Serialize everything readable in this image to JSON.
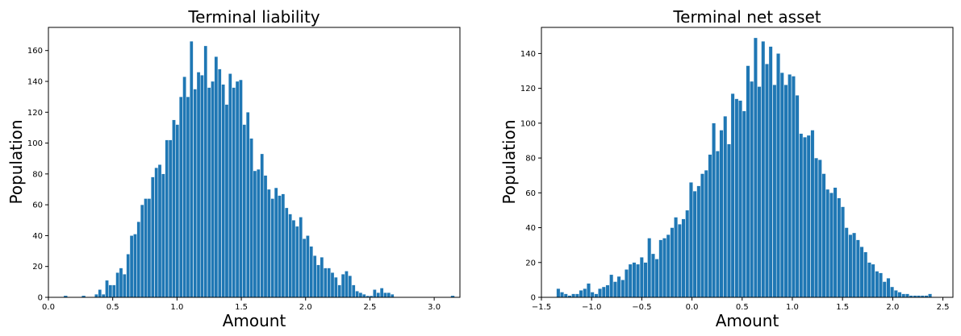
{
  "chart_data": [
    {
      "type": "bar",
      "title": "Terminal liability",
      "xlabel": "Amount",
      "ylabel": "Population",
      "xlim": [
        0.0,
        3.2
      ],
      "ylim": [
        0,
        175
      ],
      "x_ticks": [
        0.0,
        0.5,
        1.0,
        1.5,
        2.0,
        2.5,
        3.0
      ],
      "x_tick_labels": [
        "0.0",
        "0.5",
        "1.0",
        "1.5",
        "2.0",
        "2.5",
        "3.0"
      ],
      "y_ticks": [
        0,
        20,
        40,
        60,
        80,
        100,
        120,
        140,
        160
      ],
      "y_tick_labels": [
        "0",
        "20",
        "40",
        "60",
        "80",
        "100",
        "120",
        "140",
        "160"
      ],
      "bin_start": 0.36,
      "bin_width": 0.0274,
      "values": [
        2,
        5,
        2,
        11,
        8,
        8,
        16,
        19,
        15,
        28,
        40,
        41,
        49,
        60,
        64,
        64,
        78,
        84,
        86,
        80,
        102,
        102,
        115,
        112,
        130,
        143,
        130,
        166,
        135,
        146,
        144,
        163,
        136,
        140,
        156,
        148,
        138,
        125,
        145,
        136,
        140,
        141,
        112,
        120,
        103,
        82,
        83,
        93,
        79,
        70,
        64,
        71,
        66,
        67,
        58,
        54,
        50,
        46,
        52,
        38,
        40,
        33,
        27,
        21,
        26,
        19,
        19,
        16,
        13,
        8,
        15,
        17,
        14,
        8,
        4,
        3,
        2,
        1,
        1,
        5,
        3,
        6,
        3,
        3,
        2
      ],
      "extra_bars": [
        {
          "x": 0.12,
          "y": 1
        },
        {
          "x": 0.26,
          "y": 1
        },
        {
          "x": 3.13,
          "y": 1
        }
      ],
      "bar_color": "#1f77b4"
    },
    {
      "type": "bar",
      "title": "Terminal net asset",
      "xlabel": "Amount",
      "ylabel": "Population",
      "xlim": [
        -1.5,
        2.6
      ],
      "ylim": [
        0,
        155
      ],
      "x_ticks": [
        -1.5,
        -1.0,
        -0.5,
        0.0,
        0.5,
        1.0,
        1.5,
        2.0,
        2.5
      ],
      "x_tick_labels": [
        "−1.5",
        "−1.0",
        "−0.5",
        "0.0",
        "0.5",
        "1.0",
        "1.5",
        "2.0",
        "2.5"
      ],
      "y_ticks": [
        0,
        20,
        40,
        60,
        80,
        100,
        120,
        140
      ],
      "y_tick_labels": [
        "0",
        "20",
        "40",
        "60",
        "80",
        "100",
        "120",
        "140"
      ],
      "bin_start": -1.35,
      "bin_width": 0.0378,
      "values": [
        5,
        3,
        2,
        1,
        2,
        2,
        4,
        5,
        8,
        3,
        2,
        5,
        6,
        7,
        13,
        9,
        12,
        10,
        16,
        19,
        20,
        19,
        23,
        20,
        34,
        25,
        22,
        33,
        34,
        36,
        40,
        46,
        42,
        45,
        50,
        66,
        61,
        64,
        71,
        73,
        82,
        100,
        84,
        96,
        104,
        88,
        117,
        114,
        113,
        107,
        133,
        124,
        149,
        121,
        147,
        134,
        144,
        122,
        140,
        129,
        122,
        128,
        127,
        116,
        94,
        92,
        93,
        96,
        80,
        79,
        71,
        62,
        60,
        63,
        57,
        52,
        40,
        36,
        37,
        33,
        29,
        26,
        20,
        19,
        15,
        14,
        9,
        11,
        6,
        4,
        3,
        2,
        2,
        1,
        1,
        1,
        1,
        1,
        2
      ]
    }
  ],
  "colors": {
    "bar": "#1f77b4",
    "bar_edge": "#ffffff",
    "axes": "#000000"
  }
}
